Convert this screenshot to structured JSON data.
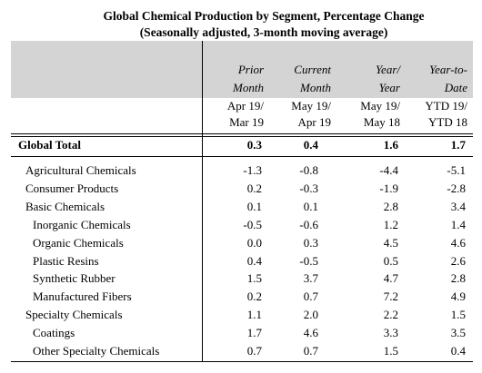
{
  "header": {
    "title": "Global Chemical Production by Segment, Percentage Change",
    "subtitle": "(Seasonally adjusted, 3-month moving average)"
  },
  "table": {
    "columns": [
      {
        "line1": "Prior",
        "line2": "Month",
        "period1": "Apr 19/",
        "period2": "Mar 19"
      },
      {
        "line1": "Current",
        "line2": "Month",
        "period1": "May 19/",
        "period2": "Apr 19"
      },
      {
        "line1": "Year/",
        "line2": "Year",
        "period1": "May 19/",
        "period2": "May 18"
      },
      {
        "line1": "Year-to-",
        "line2": "Date",
        "period1": "YTD 19/",
        "period2": "YTD 18"
      }
    ],
    "total": {
      "label": "Global Total",
      "values": [
        "0.3",
        "0.4",
        "1.6",
        "1.7"
      ]
    },
    "rows": [
      {
        "label": "Agricultural Chemicals",
        "values": [
          "-1.3",
          "-0.8",
          "-4.4",
          "-5.1"
        ]
      },
      {
        "label": "Consumer Products",
        "values": [
          "0.2",
          "-0.3",
          "-1.9",
          "-2.8"
        ]
      },
      {
        "label": "Basic Chemicals",
        "values": [
          "0.1",
          "0.1",
          "2.8",
          "3.4"
        ]
      },
      {
        "label": "Inorganic Chemicals",
        "values": [
          "-0.5",
          "-0.6",
          "1.2",
          "1.4"
        ]
      },
      {
        "label": "Organic Chemicals",
        "values": [
          "0.0",
          "0.3",
          "4.5",
          "4.6"
        ]
      },
      {
        "label": "Plastic Resins",
        "values": [
          "0.4",
          "-0.5",
          "0.5",
          "2.6"
        ]
      },
      {
        "label": "Synthetic Rubber",
        "values": [
          "1.5",
          "3.7",
          "4.7",
          "2.8"
        ]
      },
      {
        "label": "Manufactured Fibers",
        "values": [
          "0.2",
          "0.7",
          "7.2",
          "4.9"
        ]
      },
      {
        "label": "Specialty Chemicals",
        "values": [
          "1.1",
          "2.0",
          "2.2",
          "1.5"
        ]
      },
      {
        "label": "Coatings",
        "values": [
          "1.7",
          "4.6",
          "3.3",
          "3.5"
        ]
      },
      {
        "label": "Other Specialty Chemicals",
        "values": [
          "0.7",
          "0.7",
          "1.5",
          "0.4"
        ]
      }
    ]
  }
}
